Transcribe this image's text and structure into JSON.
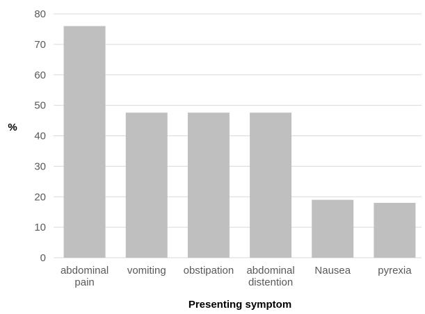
{
  "chart_data": {
    "type": "bar",
    "categories": [
      [
        "abdominal",
        "pain"
      ],
      [
        "vomiting"
      ],
      [
        "obstipation"
      ],
      [
        "abdominal",
        "distention"
      ],
      [
        "Nausea"
      ],
      [
        "pyrexia"
      ]
    ],
    "values": [
      76,
      47.6,
      47.6,
      47.6,
      19,
      18
    ],
    "title": "",
    "xlabel": "Presenting symptom",
    "ylabel": "%",
    "ylim": [
      0,
      80
    ],
    "yticks": [
      0,
      10,
      20,
      30,
      40,
      50,
      60,
      70,
      80
    ],
    "grid": true,
    "legend": "none",
    "colors": {
      "bar": "#bfbfbf",
      "grid": "#d9d9d9",
      "tick_text": "#595959",
      "axis_title": "#000000"
    }
  }
}
